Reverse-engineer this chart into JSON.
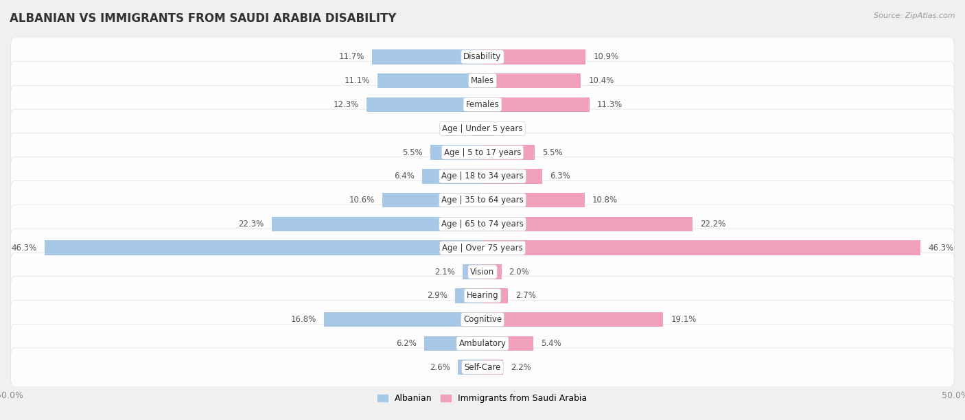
{
  "title": "ALBANIAN VS IMMIGRANTS FROM SAUDI ARABIA DISABILITY",
  "source": "Source: ZipAtlas.com",
  "categories": [
    "Disability",
    "Males",
    "Females",
    "Age | Under 5 years",
    "Age | 5 to 17 years",
    "Age | 18 to 34 years",
    "Age | 35 to 64 years",
    "Age | 65 to 74 years",
    "Age | Over 75 years",
    "Vision",
    "Hearing",
    "Cognitive",
    "Ambulatory",
    "Self-Care"
  ],
  "albanian": [
    11.7,
    11.1,
    12.3,
    1.1,
    5.5,
    6.4,
    10.6,
    22.3,
    46.3,
    2.1,
    2.9,
    16.8,
    6.2,
    2.6
  ],
  "saudi": [
    10.9,
    10.4,
    11.3,
    1.2,
    5.5,
    6.3,
    10.8,
    22.2,
    46.3,
    2.0,
    2.7,
    19.1,
    5.4,
    2.2
  ],
  "albanian_color": "#a8c8e8",
  "saudi_color": "#f0a0b8",
  "bg_light": "#f0f0f0",
  "bg_row_even": "#e8e8e8",
  "bg_row_odd": "#f0f0f0",
  "axis_max": 50.0,
  "legend_albanian": "Albanian",
  "legend_saudi": "Immigrants from Saudi Arabia",
  "title_fontsize": 12,
  "label_fontsize": 8.5,
  "value_fontsize": 8.5
}
